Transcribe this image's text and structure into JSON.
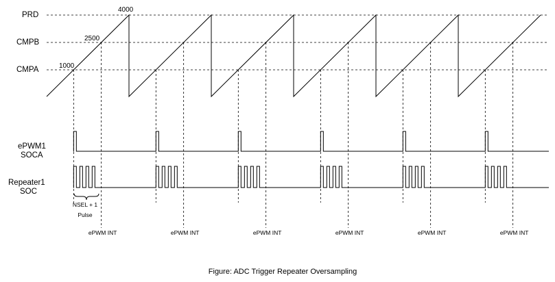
{
  "levels": {
    "prd": {
      "label": "PRD",
      "value_label": "4000"
    },
    "cmpb": {
      "label": "CMPB",
      "value_label": "2500"
    },
    "cmpa": {
      "label": "CMPA",
      "value_label": "1000"
    }
  },
  "signals": {
    "soca": {
      "label_line1": "ePWM1",
      "label_line2": "SOCA"
    },
    "repeater": {
      "label_line1": "Repeater1",
      "label_line2": "SOC"
    }
  },
  "annotation": {
    "line1": "NSEL + 1",
    "line2": "Pulse"
  },
  "periods": 6,
  "repeater_pulses_per_trigger": 4,
  "interrupt_label": "ePWM INT",
  "caption": "Figure: ADC Trigger Repeater Oversampling"
}
